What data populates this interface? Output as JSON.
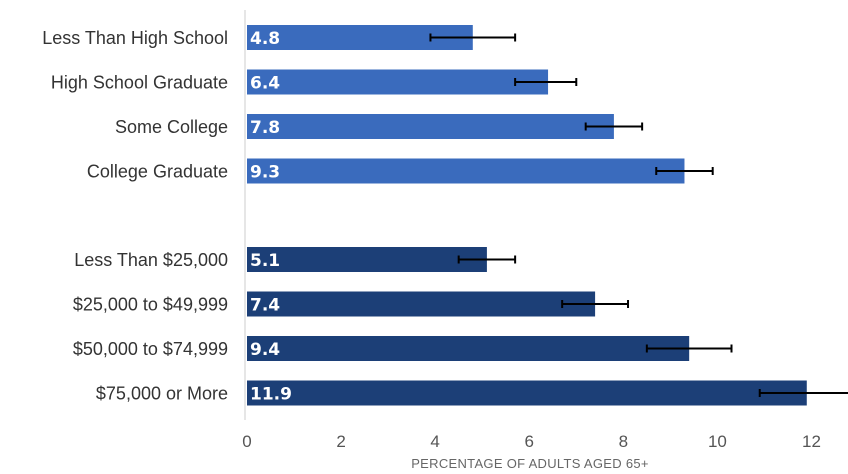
{
  "chart_data": {
    "type": "bar",
    "orientation": "horizontal",
    "title": "",
    "xlabel": "PERCENTAGE OF ADULTS AGED 65+",
    "ylabel": "",
    "xlim": [
      0,
      12.5
    ],
    "xticks": [
      0,
      2,
      4,
      6,
      8,
      10,
      12
    ],
    "grid": false,
    "groups": [
      {
        "color": "#3a6bbd",
        "categories": [
          "Less Than High School",
          "High School Graduate",
          "Some College",
          "College Graduate"
        ],
        "values": [
          4.8,
          6.4,
          7.8,
          9.3
        ],
        "error_low": [
          3.9,
          5.7,
          7.2,
          8.7
        ],
        "error_high": [
          5.7,
          7.0,
          8.4,
          9.9
        ]
      },
      {
        "color": "#1c3f77",
        "categories": [
          "Less Than $25,000",
          "$25,000 to $49,999",
          "$50,000 to $74,999",
          "$75,000 or More"
        ],
        "values": [
          5.1,
          7.4,
          9.4,
          11.9
        ],
        "error_low": [
          4.5,
          6.7,
          8.5,
          10.9
        ],
        "error_high": [
          5.7,
          8.1,
          10.3,
          12.9
        ]
      }
    ],
    "value_labels": [
      "4.8",
      "6.4",
      "7.8",
      "9.3",
      "5.1",
      "7.4",
      "9.4",
      "11.9"
    ]
  }
}
